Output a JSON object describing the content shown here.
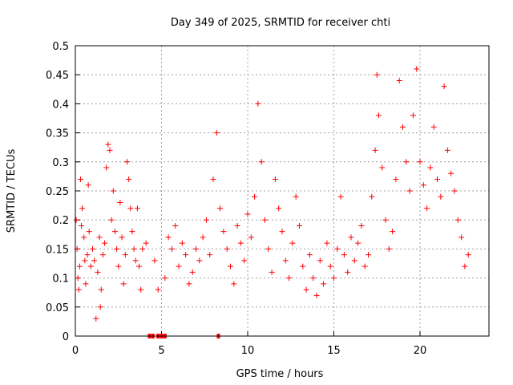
{
  "chart_data": {
    "type": "scatter",
    "title": "Day 349 of 2025, SRMTID for receiver chti",
    "xlabel": "GPS time / hours",
    "ylabel": "SRMTID / TECUs",
    "xlim": [
      0,
      24
    ],
    "ylim": [
      0,
      0.5
    ],
    "x_ticks": [
      0,
      5,
      10,
      15,
      20
    ],
    "y_ticks": [
      0,
      0.05,
      0.1,
      0.15,
      0.2,
      0.25,
      0.3,
      0.35,
      0.4,
      0.45,
      0.5
    ],
    "x_tick_labels": [
      "0",
      "5",
      "10",
      "15",
      "20"
    ],
    "y_tick_labels": [
      "0",
      "0.05",
      "0.1",
      "0.15",
      "0.2",
      "0.25",
      "0.3",
      "0.35",
      "0.4",
      "0.45",
      "0.5"
    ],
    "grid": true,
    "marker": "+",
    "series_color": "#ff0000",
    "zero_value_markers_x": [
      4.3,
      4.5,
      4.8,
      5.0,
      5.2,
      8.3
    ],
    "series": [
      {
        "points": [
          [
            0.05,
            0.2
          ],
          [
            0.1,
            0.15
          ],
          [
            0.15,
            0.1
          ],
          [
            0.2,
            0.08
          ],
          [
            0.25,
            0.12
          ],
          [
            0.3,
            0.27
          ],
          [
            0.35,
            0.19
          ],
          [
            0.4,
            0.22
          ],
          [
            0.5,
            0.17
          ],
          [
            0.55,
            0.13
          ],
          [
            0.6,
            0.09
          ],
          [
            0.7,
            0.14
          ],
          [
            0.75,
            0.26
          ],
          [
            0.8,
            0.18
          ],
          [
            0.9,
            0.12
          ],
          [
            1.0,
            0.15
          ],
          [
            1.1,
            0.13
          ],
          [
            1.2,
            0.03
          ],
          [
            1.3,
            0.11
          ],
          [
            1.4,
            0.17
          ],
          [
            1.45,
            0.05
          ],
          [
            1.5,
            0.08
          ],
          [
            1.6,
            0.14
          ],
          [
            1.7,
            0.16
          ],
          [
            1.8,
            0.29
          ],
          [
            1.9,
            0.33
          ],
          [
            2.0,
            0.32
          ],
          [
            2.1,
            0.2
          ],
          [
            2.2,
            0.25
          ],
          [
            2.3,
            0.18
          ],
          [
            2.4,
            0.15
          ],
          [
            2.5,
            0.12
          ],
          [
            2.6,
            0.23
          ],
          [
            2.7,
            0.17
          ],
          [
            2.8,
            0.09
          ],
          [
            2.9,
            0.14
          ],
          [
            3.0,
            0.3
          ],
          [
            3.1,
            0.27
          ],
          [
            3.2,
            0.22
          ],
          [
            3.3,
            0.18
          ],
          [
            3.4,
            0.15
          ],
          [
            3.5,
            0.13
          ],
          [
            3.6,
            0.22
          ],
          [
            3.7,
            0.12
          ],
          [
            3.8,
            0.08
          ],
          [
            3.9,
            0.15
          ],
          [
            4.1,
            0.16
          ],
          [
            4.6,
            0.13
          ],
          [
            4.8,
            0.08
          ],
          [
            5.2,
            0.1
          ],
          [
            5.4,
            0.17
          ],
          [
            5.6,
            0.15
          ],
          [
            5.8,
            0.19
          ],
          [
            6.0,
            0.12
          ],
          [
            6.2,
            0.16
          ],
          [
            6.4,
            0.14
          ],
          [
            6.6,
            0.09
          ],
          [
            6.8,
            0.11
          ],
          [
            7.0,
            0.15
          ],
          [
            7.2,
            0.13
          ],
          [
            7.4,
            0.17
          ],
          [
            7.6,
            0.2
          ],
          [
            7.8,
            0.14
          ],
          [
            8.0,
            0.27
          ],
          [
            8.2,
            0.35
          ],
          [
            8.4,
            0.22
          ],
          [
            8.6,
            0.18
          ],
          [
            8.8,
            0.15
          ],
          [
            9.0,
            0.12
          ],
          [
            9.2,
            0.09
          ],
          [
            9.4,
            0.19
          ],
          [
            9.6,
            0.16
          ],
          [
            9.8,
            0.13
          ],
          [
            10.0,
            0.21
          ],
          [
            10.2,
            0.17
          ],
          [
            10.4,
            0.24
          ],
          [
            10.6,
            0.4
          ],
          [
            10.8,
            0.3
          ],
          [
            11.0,
            0.2
          ],
          [
            11.2,
            0.15
          ],
          [
            11.4,
            0.11
          ],
          [
            11.6,
            0.27
          ],
          [
            11.8,
            0.22
          ],
          [
            12.0,
            0.18
          ],
          [
            12.2,
            0.13
          ],
          [
            12.4,
            0.1
          ],
          [
            12.6,
            0.16
          ],
          [
            12.8,
            0.24
          ],
          [
            13.0,
            0.19
          ],
          [
            13.2,
            0.12
          ],
          [
            13.4,
            0.08
          ],
          [
            13.6,
            0.14
          ],
          [
            13.8,
            0.1
          ],
          [
            14.0,
            0.07
          ],
          [
            14.2,
            0.13
          ],
          [
            14.4,
            0.09
          ],
          [
            14.6,
            0.16
          ],
          [
            14.8,
            0.12
          ],
          [
            15.0,
            0.1
          ],
          [
            15.2,
            0.15
          ],
          [
            15.4,
            0.24
          ],
          [
            15.6,
            0.14
          ],
          [
            15.8,
            0.11
          ],
          [
            16.0,
            0.17
          ],
          [
            16.2,
            0.13
          ],
          [
            16.4,
            0.16
          ],
          [
            16.6,
            0.19
          ],
          [
            16.8,
            0.12
          ],
          [
            17.0,
            0.14
          ],
          [
            17.2,
            0.24
          ],
          [
            17.4,
            0.32
          ],
          [
            17.5,
            0.45
          ],
          [
            17.6,
            0.38
          ],
          [
            17.8,
            0.29
          ],
          [
            18.0,
            0.2
          ],
          [
            18.2,
            0.15
          ],
          [
            18.4,
            0.18
          ],
          [
            18.6,
            0.27
          ],
          [
            18.8,
            0.44
          ],
          [
            19.0,
            0.36
          ],
          [
            19.2,
            0.3
          ],
          [
            19.4,
            0.25
          ],
          [
            19.6,
            0.38
          ],
          [
            19.8,
            0.46
          ],
          [
            20.0,
            0.3
          ],
          [
            20.2,
            0.26
          ],
          [
            20.4,
            0.22
          ],
          [
            20.6,
            0.29
          ],
          [
            20.8,
            0.36
          ],
          [
            21.0,
            0.27
          ],
          [
            21.2,
            0.24
          ],
          [
            21.4,
            0.43
          ],
          [
            21.6,
            0.32
          ],
          [
            21.8,
            0.28
          ],
          [
            22.0,
            0.25
          ],
          [
            22.2,
            0.2
          ],
          [
            22.4,
            0.17
          ],
          [
            22.6,
            0.12
          ],
          [
            22.8,
            0.14
          ]
        ]
      }
    ]
  }
}
